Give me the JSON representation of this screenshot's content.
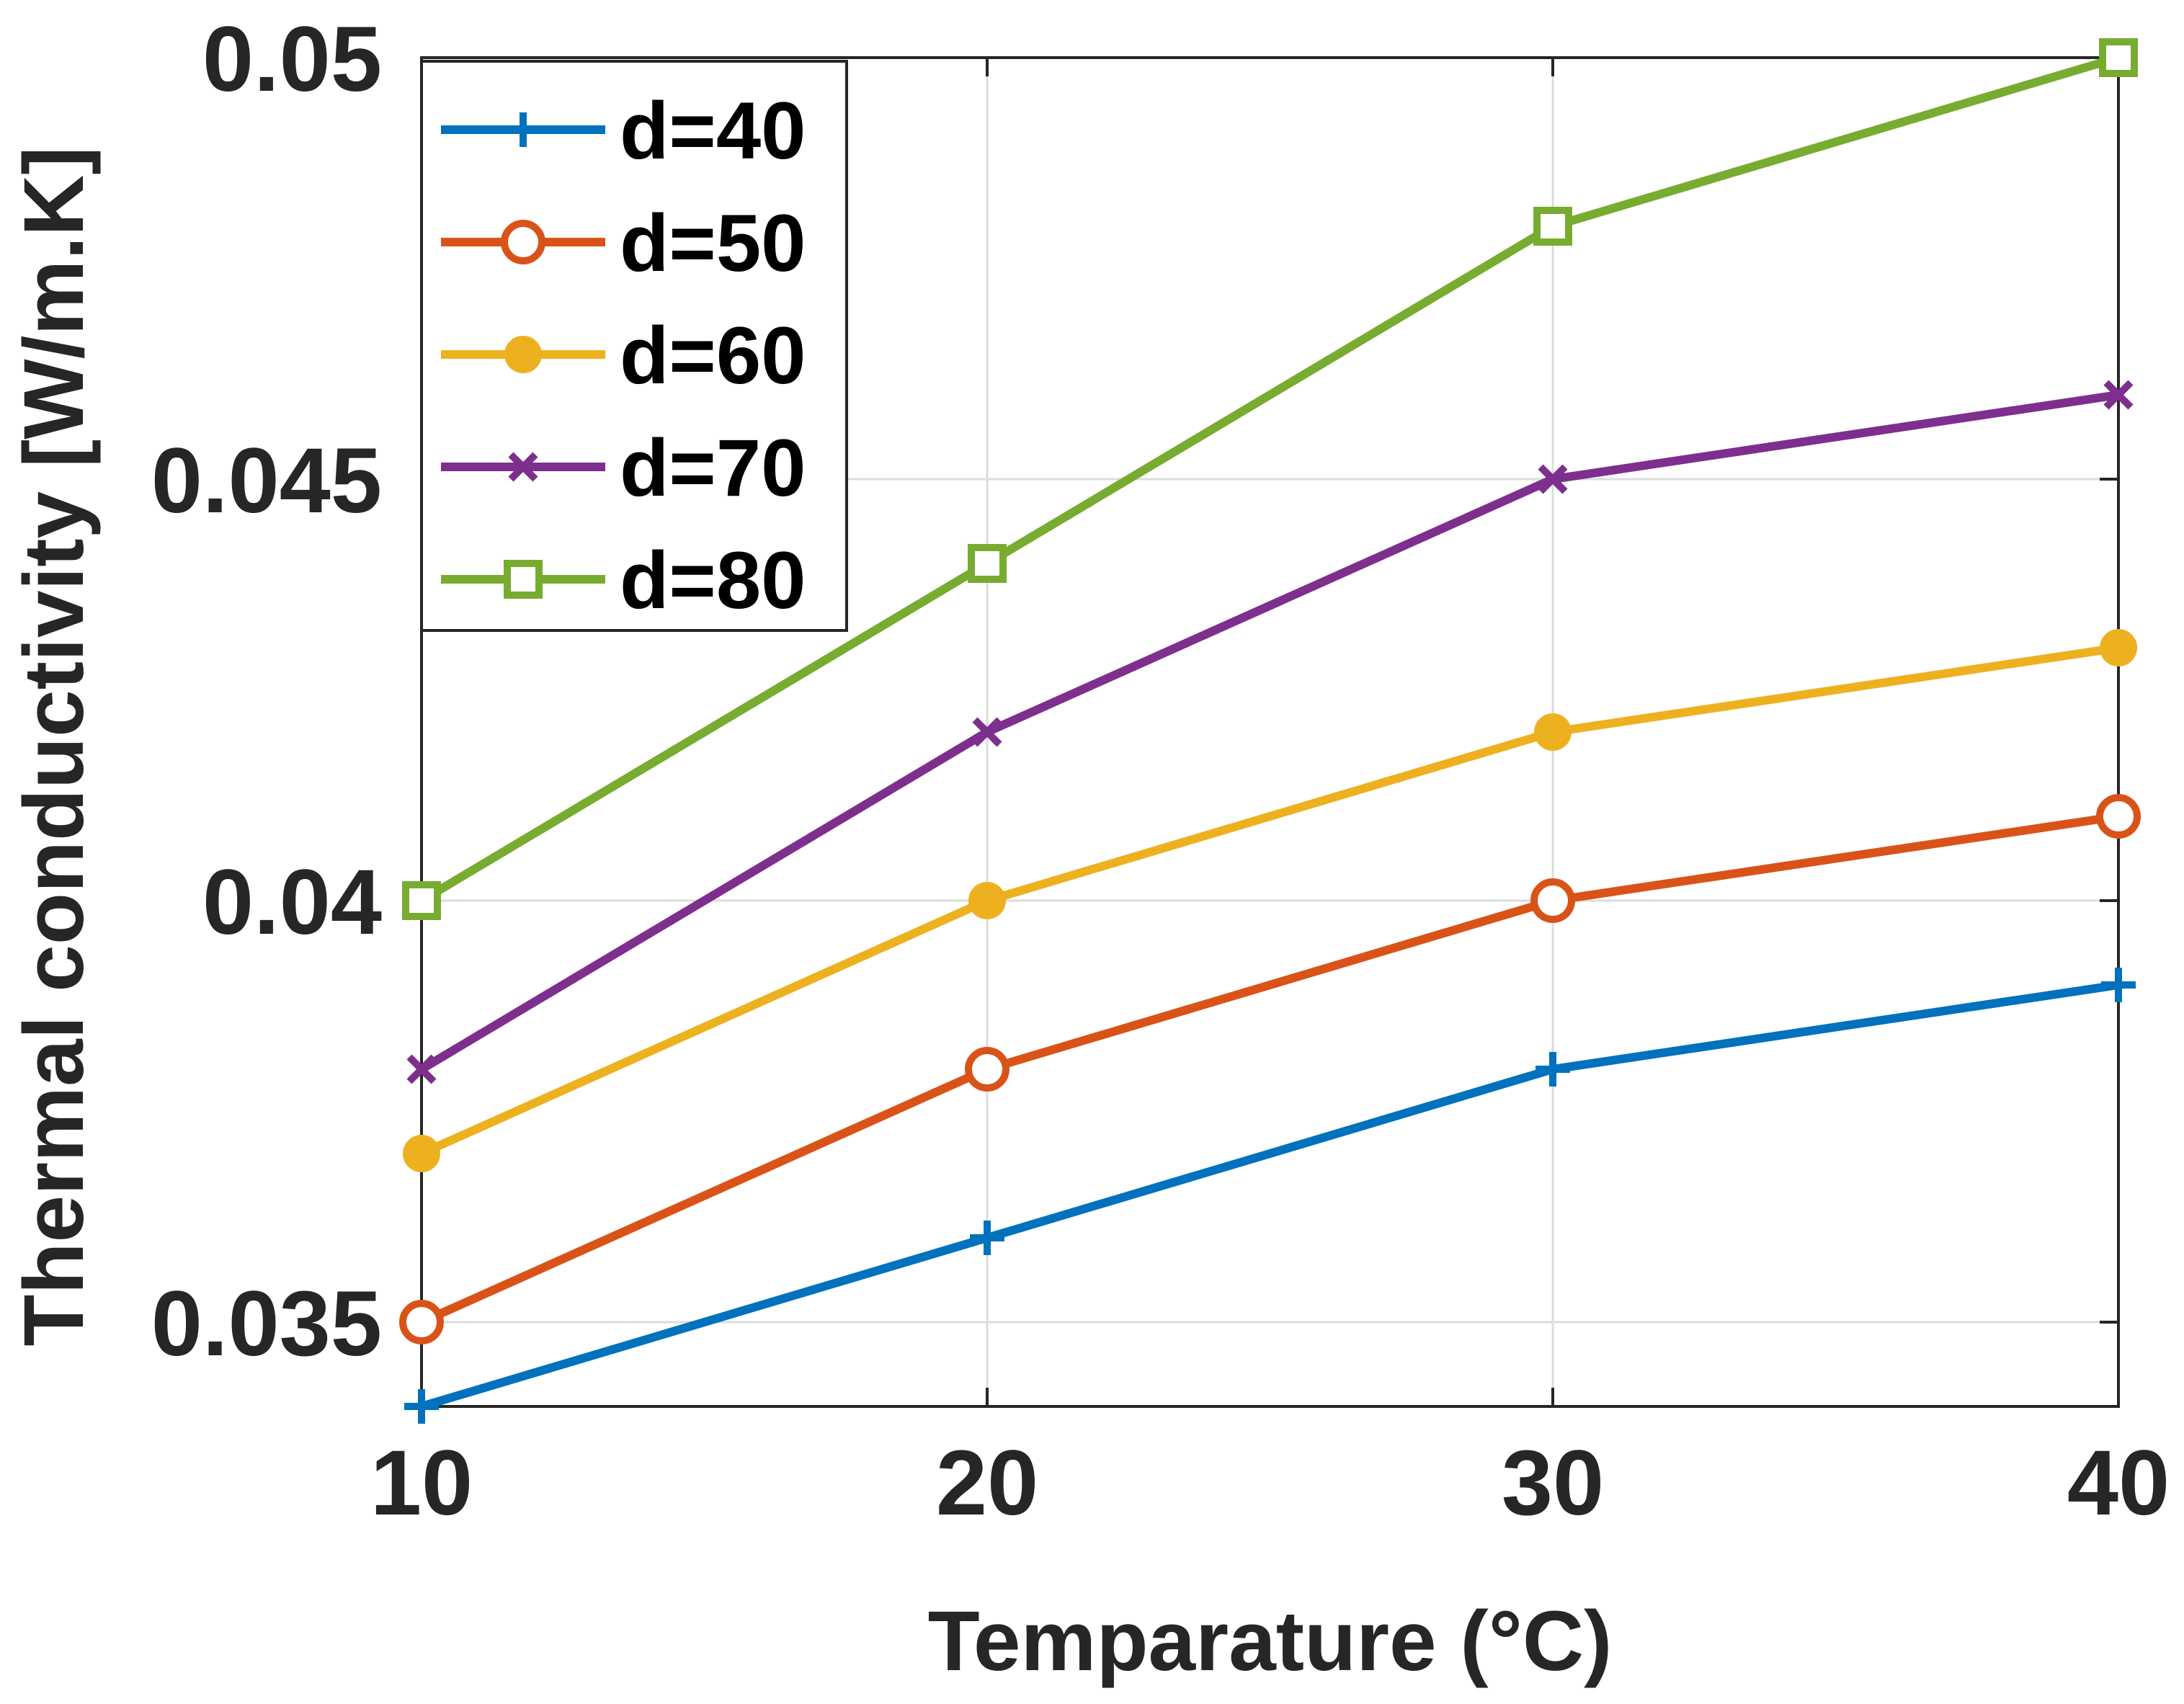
{
  "chart_data": {
    "type": "line",
    "title": "",
    "xlabel": "Temparature (°C)",
    "ylabel": "Thermal conductivity [W/m.K]",
    "x": [
      10,
      20,
      30,
      40
    ],
    "xlim": [
      10,
      40
    ],
    "ylim": [
      0.034,
      0.05
    ],
    "xticks": [
      10,
      20,
      30,
      40
    ],
    "xtick_labels": [
      "10",
      "20",
      "30",
      "40"
    ],
    "yticks": [
      0.035,
      0.04,
      0.045,
      0.05
    ],
    "ytick_labels": [
      "0.035",
      "0.04",
      "0.045",
      "0.05"
    ],
    "grid": true,
    "legend_position": "top-left",
    "series": [
      {
        "name": "d=40",
        "color": "#0072BD",
        "marker": "plus",
        "values": [
          0.034,
          0.036,
          0.038,
          0.039
        ]
      },
      {
        "name": "d=50",
        "color": "#D95319",
        "marker": "circle",
        "values": [
          0.035,
          0.038,
          0.04,
          0.041
        ]
      },
      {
        "name": "d=60",
        "color": "#EDB120",
        "marker": "dot",
        "values": [
          0.037,
          0.04,
          0.042,
          0.043
        ]
      },
      {
        "name": "d=70",
        "color": "#7E2F8E",
        "marker": "x",
        "values": [
          0.038,
          0.042,
          0.045,
          0.046
        ]
      },
      {
        "name": "d=80",
        "color": "#77AC30",
        "marker": "square",
        "values": [
          0.04,
          0.044,
          0.048,
          0.05
        ]
      }
    ]
  }
}
